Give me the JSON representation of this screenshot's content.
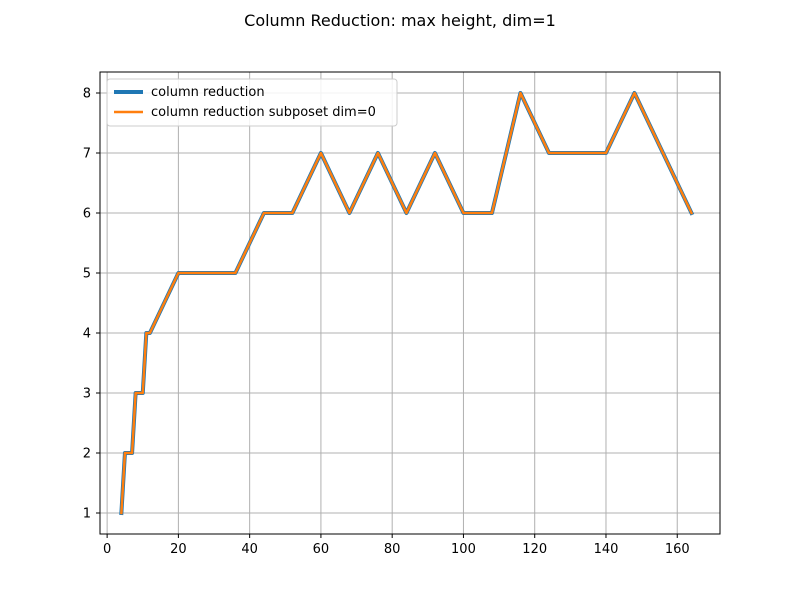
{
  "chart_data": {
    "type": "line",
    "title": "Column Reduction: max height, dim=1",
    "xlabel": "",
    "ylabel": "",
    "xlim": [
      -2.0,
      172.0
    ],
    "ylim": [
      0.65,
      8.35
    ],
    "xticks": [
      0,
      20,
      40,
      60,
      80,
      100,
      120,
      140,
      160
    ],
    "yticks": [
      1,
      2,
      3,
      4,
      5,
      6,
      7,
      8
    ],
    "grid": true,
    "legend_position": "top-left",
    "series": [
      {
        "name": "column reduction",
        "color": "#1f77b4",
        "x": [
          4,
          5,
          7,
          8,
          10,
          11,
          12,
          20,
          36,
          44,
          52,
          60,
          68,
          76,
          84,
          92,
          100,
          108,
          116,
          124,
          140,
          148,
          164
        ],
        "y": [
          1,
          2,
          2,
          3,
          3,
          4,
          4,
          5,
          5,
          6,
          6,
          7,
          6,
          7,
          6,
          7,
          6,
          6,
          8,
          7,
          7,
          8,
          6
        ]
      },
      {
        "name": "column reduction subposet dim=0",
        "color": "#ff7f0e",
        "x": [
          4,
          5,
          7,
          8,
          10,
          11,
          12,
          20,
          36,
          44,
          52,
          60,
          68,
          76,
          84,
          92,
          100,
          108,
          116,
          124,
          140,
          148,
          164
        ],
        "y": [
          1,
          2,
          2,
          3,
          3,
          4,
          4,
          5,
          5,
          6,
          6,
          7,
          6,
          7,
          6,
          7,
          6,
          6,
          8,
          7,
          7,
          8,
          6
        ]
      }
    ]
  }
}
